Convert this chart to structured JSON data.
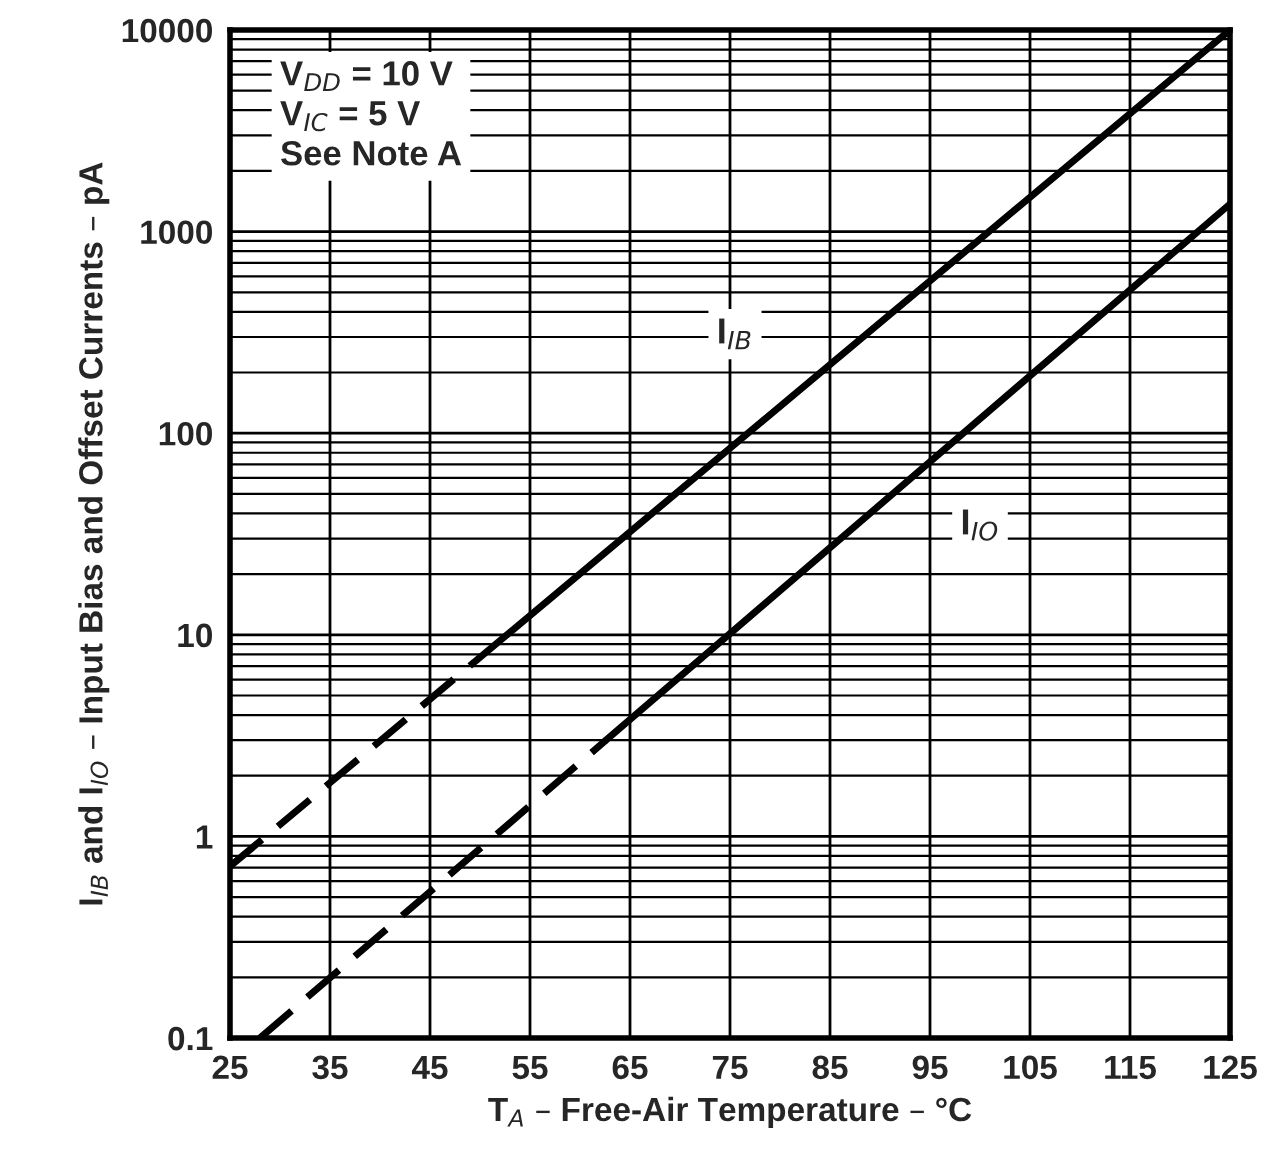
{
  "chart_data": {
    "type": "line",
    "xlabel": "T$_{A}$ – Free-Air Temperature – °C",
    "ylabel": "I$_{IB}$ and I$_{IO}$ – Input Bias and Offset Currents – pA",
    "series": [
      {
        "color": "#000000",
        "line_style": "dashed",
        "x": [
          25,
          49.4
        ],
        "values": [
          0.71,
          7.3
        ]
      },
      {
        "color": "#000000",
        "line_style": "solid",
        "x": [
          49.4,
          125
        ],
        "values": [
          7.3,
          10000
        ]
      },
      {
        "color": "#000000",
        "line_style": "dashed",
        "x": [
          28,
          62.6
        ],
        "values": [
          0.1,
          3.0
        ]
      },
      {
        "color": "#000000",
        "line_style": "solid",
        "x": [
          62.6,
          125
        ],
        "values": [
          3.0,
          1370
        ]
      }
    ],
    "annotations": [
      "V$_{DD}$ = 10 V\nV$_{IC}$ = 5 V\nSee Note A",
      {
        "text": "I$_{IB}$",
        "x": 75.5,
        "y": 310
      },
      {
        "text": "I$_{IO}$",
        "x": 100,
        "y": 35
      }
    ],
    "log": true,
    "grid": true,
    "legend": false,
    "xlim": [
      25,
      125
    ],
    "xticks": [
      25,
      35,
      45,
      55,
      65,
      75,
      85,
      95,
      105,
      115,
      125
    ],
    "ylim": [
      0.1,
      10000
    ],
    "yticks": [
      0.1,
      1,
      10,
      100,
      1000,
      10000
    ]
  }
}
